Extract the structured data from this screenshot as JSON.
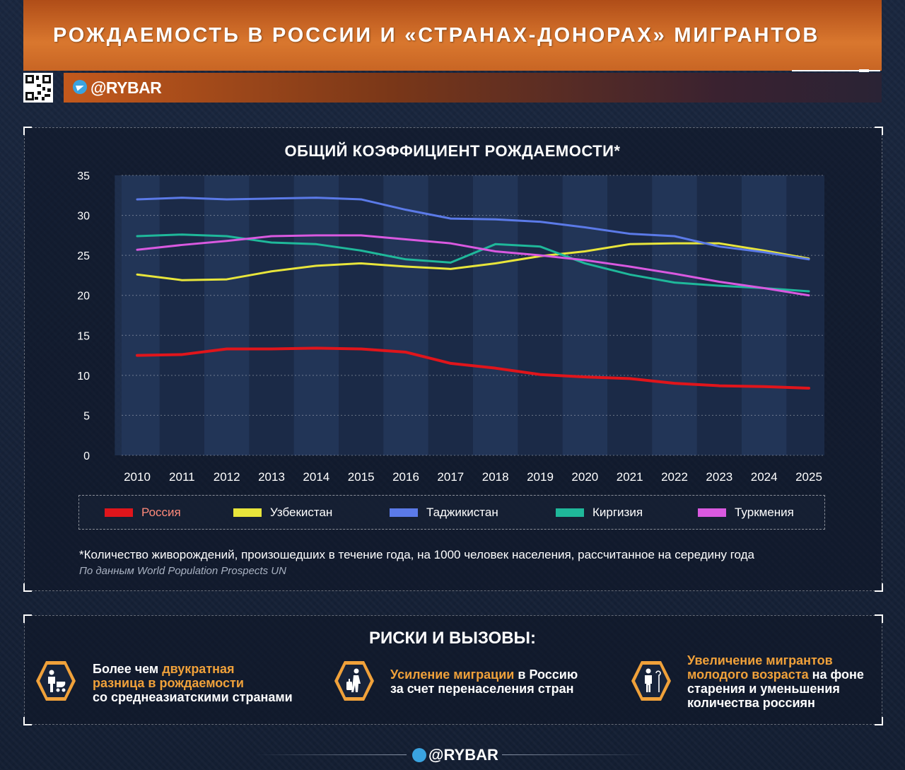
{
  "header": {
    "title": "РОЖДАЕМОСТЬ В РОССИИ И «СТРАНАХ-ДОНОРАХ» МИГРАНТОВ",
    "handle": "@RYBAR"
  },
  "chart_data": {
    "type": "line",
    "title": "ОБЩИЙ КОЭФФИЦИЕНТ РОЖДАЕМОСТИ*",
    "x": [
      2010,
      2011,
      2012,
      2013,
      2014,
      2015,
      2016,
      2017,
      2018,
      2019,
      2020,
      2021,
      2022,
      2023,
      2024,
      2025
    ],
    "ylim": [
      0,
      35
    ],
    "yticks": [
      0,
      5,
      10,
      15,
      20,
      25,
      30,
      35
    ],
    "grid": true,
    "legend_position": "bottom",
    "series": [
      {
        "name": "Россия",
        "color": "#e0151b",
        "values": [
          12.5,
          12.6,
          13.3,
          13.3,
          13.4,
          13.3,
          12.9,
          11.5,
          10.9,
          10.1,
          9.8,
          9.6,
          9.0,
          8.7,
          8.6,
          8.4
        ]
      },
      {
        "name": "Узбекистан",
        "color": "#e8e53b",
        "values": [
          22.6,
          21.9,
          22.0,
          23.0,
          23.7,
          24.0,
          23.6,
          23.3,
          24.0,
          24.9,
          25.5,
          26.4,
          26.5,
          26.5,
          25.6,
          24.6
        ]
      },
      {
        "name": "Таджикистан",
        "color": "#5b7ae8",
        "values": [
          32.0,
          32.2,
          32.0,
          32.1,
          32.2,
          32.0,
          30.7,
          29.6,
          29.5,
          29.2,
          28.5,
          27.7,
          27.4,
          26.1,
          25.4,
          24.5
        ]
      },
      {
        "name": "Киргизия",
        "color": "#1fb89a",
        "values": [
          27.4,
          27.6,
          27.4,
          26.6,
          26.4,
          25.6,
          24.5,
          24.1,
          26.4,
          26.1,
          24.0,
          22.6,
          21.6,
          21.2,
          20.9,
          20.5
        ]
      },
      {
        "name": "Туркмения",
        "color": "#d959e0",
        "values": [
          25.7,
          26.3,
          26.8,
          27.4,
          27.5,
          27.5,
          27.0,
          26.5,
          25.5,
          25.0,
          24.4,
          23.6,
          22.7,
          21.7,
          20.9,
          20.0
        ]
      }
    ]
  },
  "note": "*Количество живорождений, произошедших в течение года, на 1000 человек населения, рассчитанное на середину года",
  "source": "По данным World Population Prospects UN",
  "risks": {
    "title": "РИСКИ И ВЫЗОВЫ:",
    "items": [
      {
        "parts": [
          [
            "Более чем ",
            false
          ],
          [
            "двукратная",
            true
          ]
        ],
        "line2": [
          [
            "разница в рождаемости",
            true
          ]
        ],
        "line3": [
          [
            "со среднеазиатскими странами",
            false
          ]
        ]
      },
      {
        "parts": [
          [
            "Усиление миграции",
            true
          ],
          [
            " в Россию",
            false
          ]
        ],
        "line2": [
          [
            "за счет перенаселения стран",
            false
          ]
        ]
      },
      {
        "parts": [
          [
            "Увеличение мигрантов",
            true
          ]
        ],
        "line2": [
          [
            "молодого возраста",
            true
          ],
          [
            " на фоне",
            false
          ]
        ],
        "line3": [
          [
            "старения и уменьшения",
            false
          ]
        ],
        "line4": [
          [
            "количества россиян",
            false
          ]
        ]
      }
    ]
  },
  "footer": {
    "handle": "@RYBAR"
  }
}
